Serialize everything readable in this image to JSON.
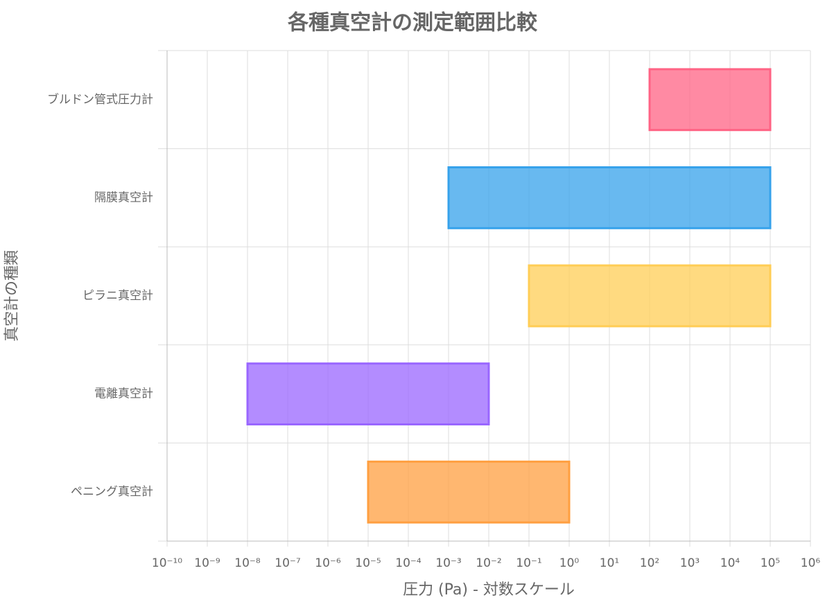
{
  "chart_data": {
    "type": "bar",
    "orientation": "horizontal",
    "title": "各種真空計の測定範囲比較",
    "x_label": "圧力 (Pa) - 対数スケール",
    "y_label": "真空計の種類",
    "xscale": "log",
    "grid": true,
    "categories": [
      "ブルドン管式圧力計",
      "隔膜真空計",
      "ピラニ真空計",
      "電離真空計",
      "ペニング真空計"
    ],
    "values": [
      [
        100,
        100000
      ],
      [
        0.001,
        100000
      ],
      [
        0.1,
        100000
      ],
      [
        1e-08,
        0.01
      ],
      [
        1e-05,
        1
      ]
    ],
    "colors": [
      "#ff6384",
      "#36a2eb",
      "#ffcd56",
      "#9966ff",
      "#ff9f40"
    ],
    "xlim": [
      1e-10,
      1000000
    ],
    "xticks": [
      {
        "value": 1e-10,
        "label": "10⁻¹⁰"
      },
      {
        "value": 1e-09,
        "label": "10⁻⁹"
      },
      {
        "value": 1e-08,
        "label": "10⁻⁸"
      },
      {
        "value": 1e-07,
        "label": "10⁻⁷"
      },
      {
        "value": 1e-06,
        "label": "10⁻⁶"
      },
      {
        "value": 1e-05,
        "label": "10⁻⁵"
      },
      {
        "value": 0.0001,
        "label": "10⁻⁴"
      },
      {
        "value": 0.001,
        "label": "10⁻³"
      },
      {
        "value": 0.01,
        "label": "10⁻²"
      },
      {
        "value": 0.1,
        "label": "10⁻¹"
      },
      {
        "value": 1,
        "label": "10⁰"
      },
      {
        "value": 10,
        "label": "10¹"
      },
      {
        "value": 100,
        "label": "10²"
      },
      {
        "value": 1000,
        "label": "10³"
      },
      {
        "value": 10000,
        "label": "10⁴"
      },
      {
        "value": 100000,
        "label": "10⁵"
      },
      {
        "value": 1000000,
        "label": "10⁶"
      }
    ]
  }
}
